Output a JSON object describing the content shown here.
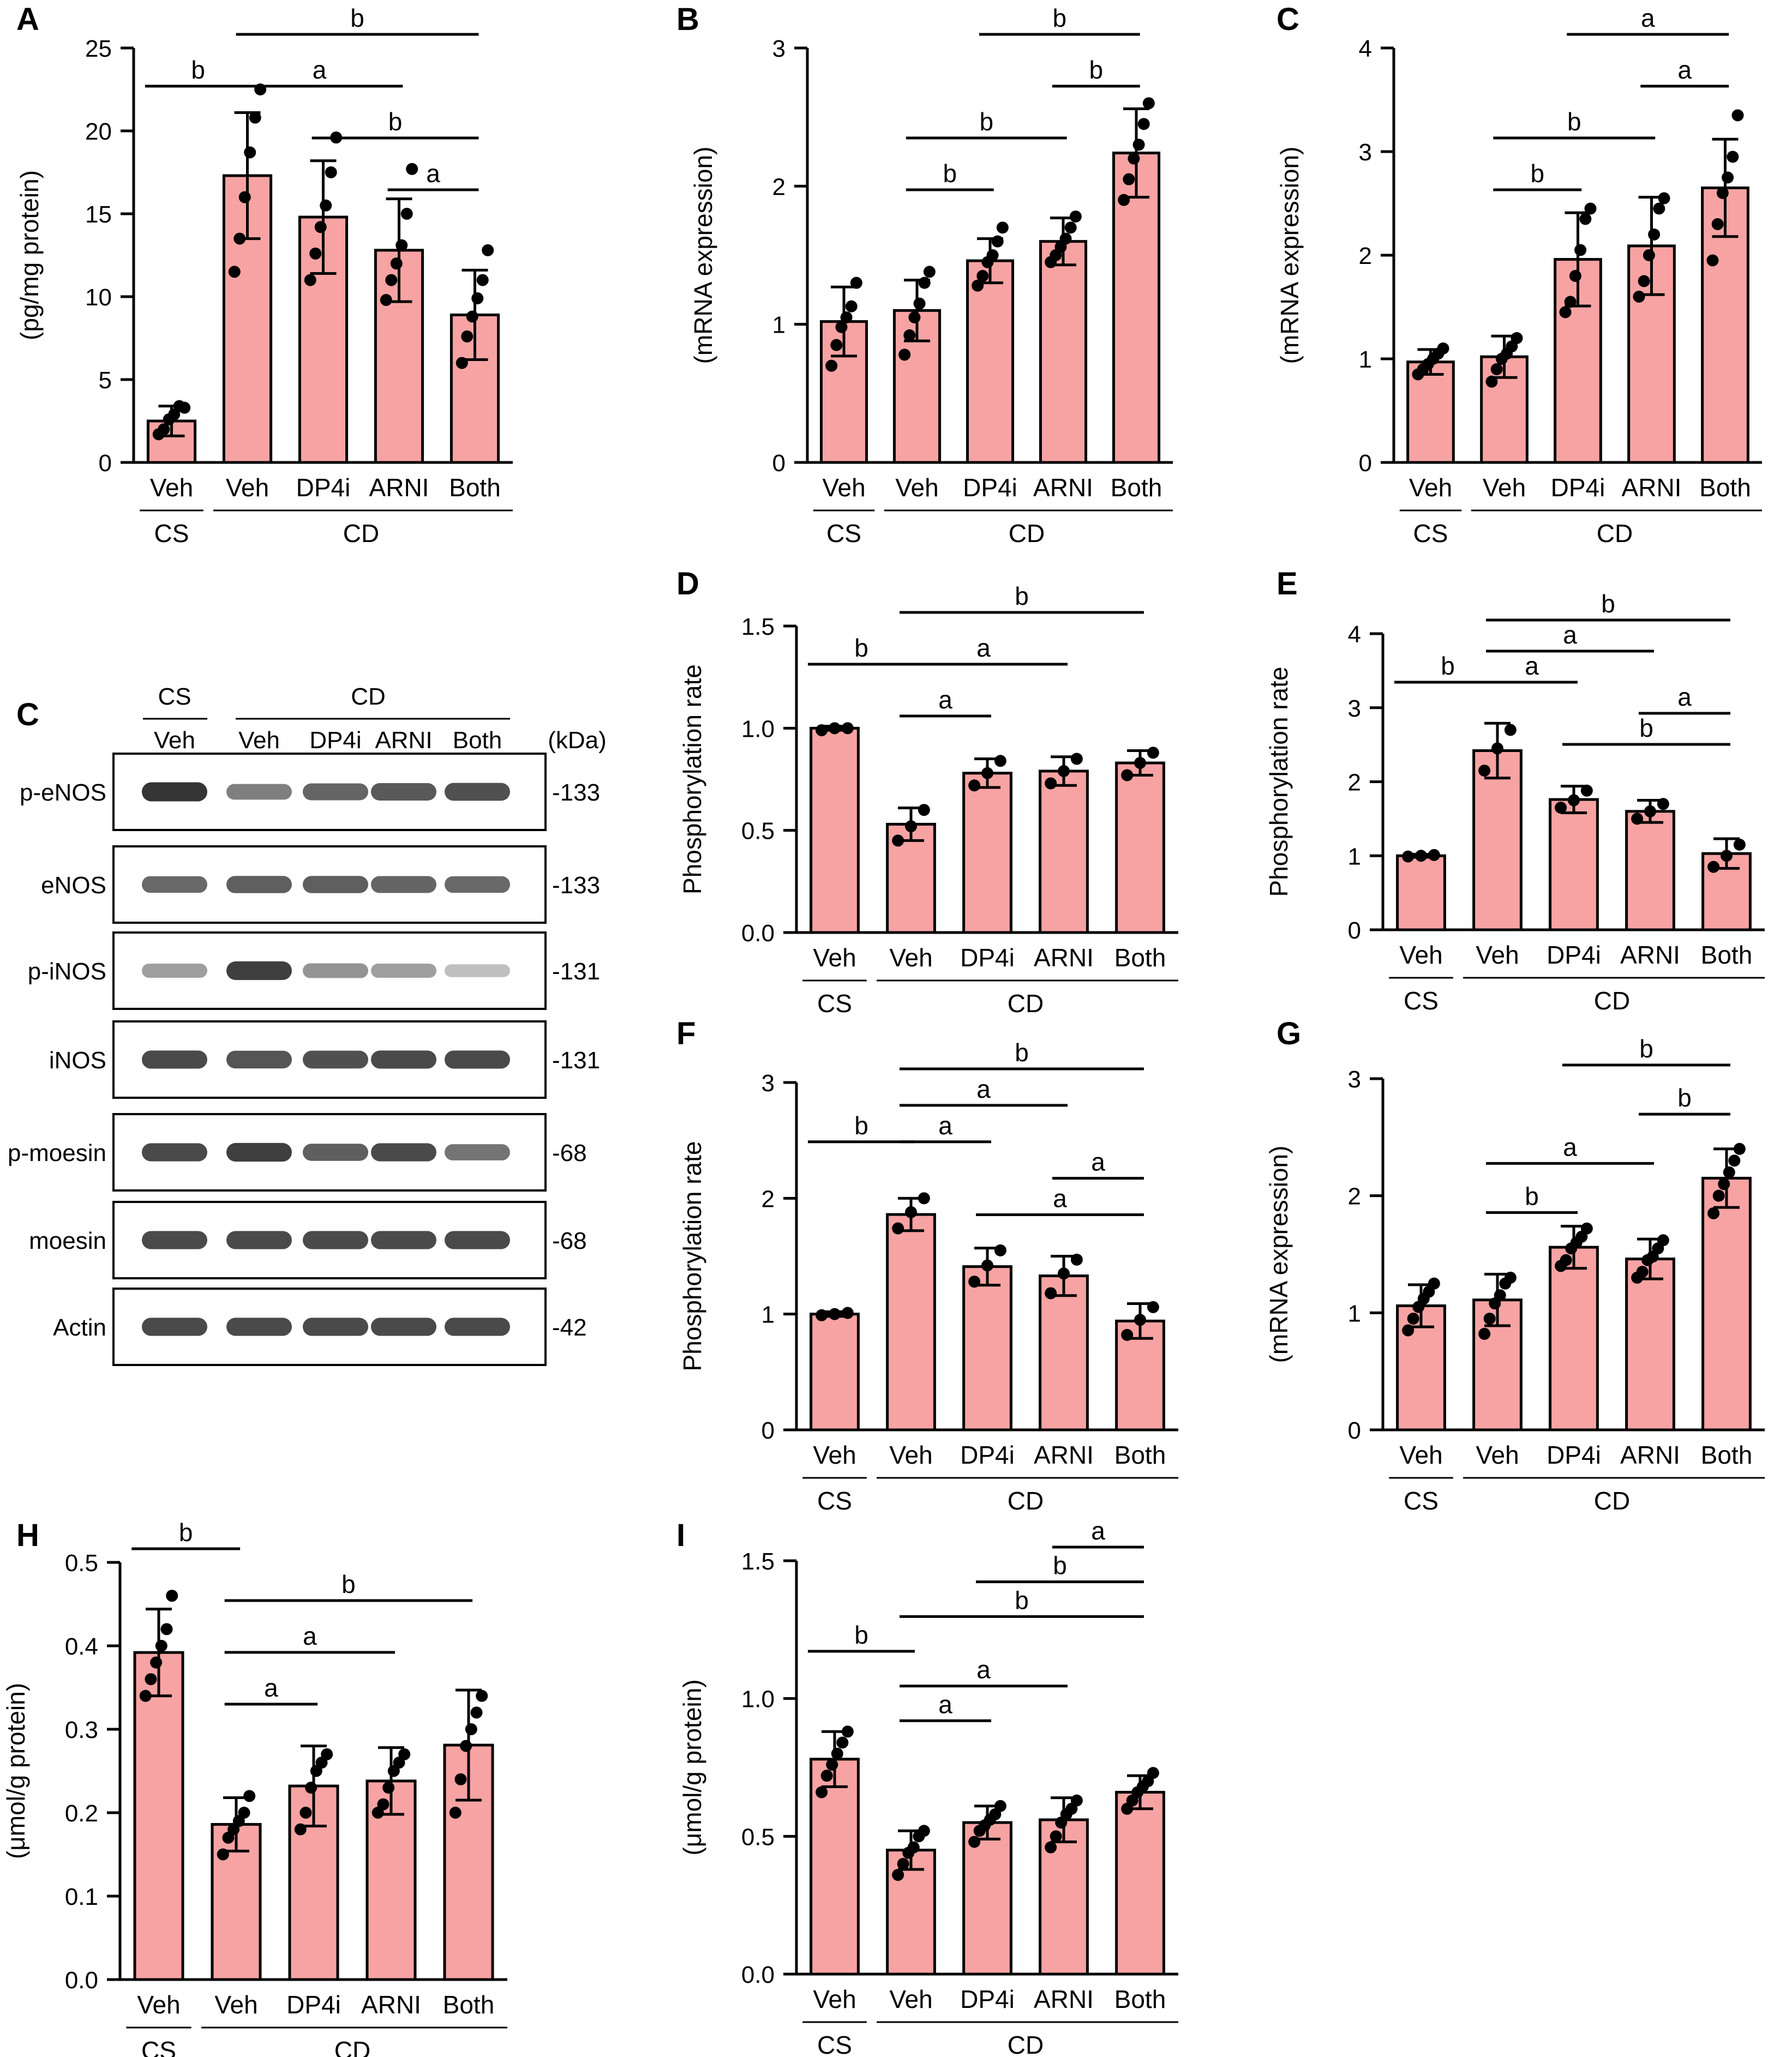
{
  "colors": {
    "bar_fill": "#f7a3a3",
    "bar_stroke": "#000000",
    "dot": "#000000",
    "blot_bg": "#ffffff",
    "blot_band": "#2a2a2a"
  },
  "groups": {
    "cs": "CS",
    "cd": "CD"
  },
  "categories": [
    "Veh",
    "Veh",
    "DP4i",
    "ARNI",
    "Both"
  ],
  "chart_data": [
    {
      "panel": "A",
      "type": "bar",
      "categories": [
        "Veh",
        "Veh",
        "DP4i",
        "ARNI",
        "Both"
      ],
      "ylabel": "(pg/mg protein)",
      "ylim": [
        0,
        25
      ],
      "yticks": [
        0,
        5,
        10,
        15,
        20,
        25
      ],
      "values": [
        2.5,
        17.3,
        14.8,
        12.8,
        8.9
      ],
      "errors": [
        0.9,
        3.8,
        3.4,
        3.1,
        2.7
      ],
      "points": [
        [
          1.7,
          2.0,
          2.6,
          2.9,
          3.4,
          3.3
        ],
        [
          11.5,
          13.5,
          16.0,
          18.7,
          20.8,
          22.5
        ],
        [
          11.0,
          12.6,
          14.2,
          15.5,
          17.5,
          19.6
        ],
        [
          9.8,
          11.0,
          12.0,
          13.1,
          15.0,
          17.7
        ],
        [
          6.0,
          7.6,
          8.8,
          9.9,
          11.0,
          12.8
        ]
      ],
      "significance": [
        {
          "from": 0,
          "to": 1,
          "label": "b",
          "level": 0
        },
        {
          "from": 1,
          "to": 3,
          "label": "a",
          "level": 0
        },
        {
          "from": 1,
          "to": 4,
          "label": "b",
          "level": 1
        },
        {
          "from": 2,
          "to": 4,
          "label": "b",
          "level": -1
        },
        {
          "from": 3,
          "to": 4,
          "label": "a",
          "level": -2
        }
      ]
    },
    {
      "panel": "B",
      "type": "bar",
      "categories": [
        "Veh",
        "Veh",
        "DP4i",
        "ARNI",
        "Both"
      ],
      "ylabel": "(mRNA expression)",
      "ylim": [
        0,
        3
      ],
      "yticks": [
        0,
        1,
        2,
        3
      ],
      "values": [
        1.02,
        1.1,
        1.46,
        1.6,
        2.24
      ],
      "errors": [
        0.25,
        0.22,
        0.16,
        0.17,
        0.32
      ],
      "points": [
        [
          0.7,
          0.85,
          0.98,
          1.05,
          1.13,
          1.3
        ],
        [
          0.78,
          0.92,
          1.05,
          1.15,
          1.3,
          1.38
        ],
        [
          1.28,
          1.35,
          1.45,
          1.5,
          1.6,
          1.7
        ],
        [
          1.45,
          1.5,
          1.56,
          1.62,
          1.7,
          1.78
        ],
        [
          1.9,
          2.05,
          2.2,
          2.3,
          2.45,
          2.6
        ]
      ],
      "significance": [
        {
          "from": 1,
          "to": 2,
          "label": "b",
          "level": 0
        },
        {
          "from": 1,
          "to": 3,
          "label": "b",
          "level": 1
        },
        {
          "from": 3,
          "to": 4,
          "label": "b",
          "level": 2
        },
        {
          "from": 2,
          "to": 4,
          "label": "b",
          "level": 3
        }
      ]
    },
    {
      "panel": "C",
      "type": "bar",
      "categories": [
        "Veh",
        "Veh",
        "DP4i",
        "ARNI",
        "Both"
      ],
      "ylabel": "(mRNA expression)",
      "ylim": [
        0,
        4
      ],
      "yticks": [
        0,
        1,
        2,
        3,
        4
      ],
      "values": [
        0.97,
        1.02,
        1.96,
        2.09,
        2.65
      ],
      "errors": [
        0.12,
        0.2,
        0.45,
        0.47,
        0.47
      ],
      "points": [
        [
          0.85,
          0.9,
          0.95,
          1.0,
          1.05,
          1.1
        ],
        [
          0.78,
          0.9,
          1.0,
          1.05,
          1.12,
          1.2
        ],
        [
          1.45,
          1.55,
          1.8,
          2.05,
          2.35,
          2.45
        ],
        [
          1.6,
          1.75,
          2.0,
          2.2,
          2.45,
          2.55
        ],
        [
          1.95,
          2.3,
          2.6,
          2.75,
          2.95,
          3.35
        ]
      ],
      "significance": [
        {
          "from": 1,
          "to": 2,
          "label": "b",
          "level": 0
        },
        {
          "from": 1,
          "to": 3,
          "label": "b",
          "level": 1
        },
        {
          "from": 3,
          "to": 4,
          "label": "a",
          "level": 2
        },
        {
          "from": 2,
          "to": 4,
          "label": "a",
          "level": 3
        }
      ]
    },
    {
      "panel": "D",
      "type": "bar",
      "categories": [
        "Veh",
        "Veh",
        "DP4i",
        "ARNI",
        "Both"
      ],
      "ylabel": "Phosphorylation rate",
      "ylim": [
        0,
        1.5
      ],
      "yticks": [
        "0.0",
        "0.5",
        "1.0",
        "1.5"
      ],
      "values": [
        1.0,
        0.53,
        0.78,
        0.79,
        0.83
      ],
      "errors": [
        0.01,
        0.08,
        0.07,
        0.07,
        0.06
      ],
      "points": [
        [
          0.99,
          1.0,
          1.0
        ],
        [
          0.45,
          0.52,
          0.6
        ],
        [
          0.72,
          0.78,
          0.84
        ],
        [
          0.73,
          0.79,
          0.85
        ],
        [
          0.77,
          0.83,
          0.88
        ]
      ],
      "significance": [
        {
          "from": 1,
          "to": 2,
          "label": "a",
          "level": 0
        },
        {
          "from": 0,
          "to": 1,
          "label": "b",
          "level": 1
        },
        {
          "from": 1,
          "to": 3,
          "label": "a",
          "level": 1
        },
        {
          "from": 1,
          "to": 4,
          "label": "b",
          "level": 2
        }
      ]
    },
    {
      "panel": "E",
      "type": "bar",
      "categories": [
        "Veh",
        "Veh",
        "DP4i",
        "ARNI",
        "Both"
      ],
      "ylabel": "Phosphorylation rate",
      "ylim": [
        0,
        4
      ],
      "yticks": [
        0,
        1,
        2,
        3,
        4
      ],
      "values": [
        1.0,
        2.42,
        1.76,
        1.6,
        1.03
      ],
      "errors": [
        0.02,
        0.37,
        0.18,
        0.15,
        0.2
      ],
      "points": [
        [
          0.99,
          1.0,
          1.01
        ],
        [
          2.15,
          2.45,
          2.7
        ],
        [
          1.65,
          1.75,
          1.88
        ],
        [
          1.5,
          1.6,
          1.7
        ],
        [
          0.85,
          1.0,
          1.15
        ]
      ],
      "significance": [
        {
          "from": 2,
          "to": 4,
          "label": "b",
          "level": 0
        },
        {
          "from": 3,
          "to": 4,
          "label": "a",
          "level": 1
        },
        {
          "from": 0,
          "to": 1,
          "label": "b",
          "level": 2
        },
        {
          "from": 1,
          "to": 2,
          "label": "a",
          "level": 2
        },
        {
          "from": 1,
          "to": 3,
          "label": "a",
          "level": 3
        },
        {
          "from": 1,
          "to": 4,
          "label": "b",
          "level": 4
        }
      ]
    },
    {
      "panel": "F",
      "type": "bar",
      "categories": [
        "Veh",
        "Veh",
        "DP4i",
        "ARNI",
        "Both"
      ],
      "ylabel": "Phosphorylation rate",
      "ylim": [
        0,
        3
      ],
      "yticks": [
        0,
        1,
        2,
        3
      ],
      "values": [
        1.0,
        1.86,
        1.41,
        1.33,
        0.94
      ],
      "errors": [
        0.02,
        0.14,
        0.16,
        0.17,
        0.15
      ],
      "points": [
        [
          0.99,
          1.0,
          1.01
        ],
        [
          1.74,
          1.88,
          2.0
        ],
        [
          1.28,
          1.42,
          1.55
        ],
        [
          1.18,
          1.35,
          1.47
        ],
        [
          0.82,
          0.95,
          1.06
        ]
      ],
      "significance": [
        {
          "from": 2,
          "to": 4,
          "label": "a",
          "level": 0
        },
        {
          "from": 3,
          "to": 4,
          "label": "a",
          "level": 1
        },
        {
          "from": 0,
          "to": 1,
          "label": "b",
          "level": 2
        },
        {
          "from": 1,
          "to": 2,
          "label": "a",
          "level": 2
        },
        {
          "from": 1,
          "to": 3,
          "label": "a",
          "level": 3
        },
        {
          "from": 1,
          "to": 4,
          "label": "b",
          "level": 4
        }
      ]
    },
    {
      "panel": "G",
      "type": "bar",
      "categories": [
        "Veh",
        "Veh",
        "DP4i",
        "ARNI",
        "Both"
      ],
      "ylabel": "(mRNA expression)",
      "ylim": [
        0,
        3
      ],
      "yticks": [
        0,
        1,
        2,
        3
      ],
      "values": [
        1.06,
        1.11,
        1.56,
        1.46,
        2.15
      ],
      "errors": [
        0.18,
        0.22,
        0.18,
        0.17,
        0.25
      ],
      "points": [
        [
          0.85,
          0.95,
          1.05,
          1.12,
          1.18,
          1.25
        ],
        [
          0.82,
          0.95,
          1.08,
          1.15,
          1.25,
          1.3
        ],
        [
          1.4,
          1.45,
          1.55,
          1.6,
          1.65,
          1.72
        ],
        [
          1.3,
          1.35,
          1.45,
          1.48,
          1.55,
          1.62
        ],
        [
          1.85,
          2.0,
          2.1,
          2.2,
          2.3,
          2.4
        ]
      ],
      "significance": [
        {
          "from": 1,
          "to": 2,
          "label": "b",
          "level": 0
        },
        {
          "from": 1,
          "to": 3,
          "label": "a",
          "level": 1
        },
        {
          "from": 3,
          "to": 4,
          "label": "b",
          "level": 2
        },
        {
          "from": 2,
          "to": 4,
          "label": "b",
          "level": 3
        }
      ]
    },
    {
      "panel": "H",
      "type": "bar",
      "categories": [
        "Veh",
        "Veh",
        "DP4i",
        "ARNI",
        "Both"
      ],
      "ylabel": "(μmol/g protein)",
      "ylim": [
        0,
        0.5
      ],
      "yticks": [
        "0.0",
        "0.1",
        "0.2",
        "0.3",
        "0.4",
        "0.5"
      ],
      "values": [
        0.392,
        0.186,
        0.232,
        0.238,
        0.281
      ],
      "errors": [
        0.052,
        0.032,
        0.048,
        0.04,
        0.066
      ],
      "points": [
        [
          0.34,
          0.36,
          0.38,
          0.4,
          0.42,
          0.46
        ],
        [
          0.15,
          0.17,
          0.18,
          0.19,
          0.2,
          0.22
        ],
        [
          0.18,
          0.2,
          0.23,
          0.25,
          0.26,
          0.27
        ],
        [
          0.2,
          0.21,
          0.23,
          0.25,
          0.26,
          0.27
        ],
        [
          0.2,
          0.24,
          0.28,
          0.3,
          0.32,
          0.34
        ]
      ],
      "significance": [
        {
          "from": 1,
          "to": 2,
          "label": "a",
          "level": 0
        },
        {
          "from": 1,
          "to": 3,
          "label": "a",
          "level": 1
        },
        {
          "from": 1,
          "to": 4,
          "label": "b",
          "level": 2
        },
        {
          "from": 0,
          "to": 1,
          "label": "b",
          "level": 3
        }
      ]
    },
    {
      "panel": "I",
      "type": "bar",
      "categories": [
        "Veh",
        "Veh",
        "DP4i",
        "ARNI",
        "Both"
      ],
      "ylabel": "(μmol/g protein)",
      "ylim": [
        0,
        1.5
      ],
      "yticks": [
        "0.0",
        "0.5",
        "1.0",
        "1.5"
      ],
      "values": [
        0.78,
        0.45,
        0.55,
        0.56,
        0.66
      ],
      "errors": [
        0.1,
        0.07,
        0.06,
        0.08,
        0.06
      ],
      "points": [
        [
          0.66,
          0.72,
          0.76,
          0.8,
          0.84,
          0.88
        ],
        [
          0.36,
          0.4,
          0.44,
          0.46,
          0.5,
          0.52
        ],
        [
          0.48,
          0.52,
          0.54,
          0.56,
          0.58,
          0.61
        ],
        [
          0.46,
          0.5,
          0.55,
          0.58,
          0.6,
          0.63
        ],
        [
          0.6,
          0.63,
          0.66,
          0.68,
          0.7,
          0.73
        ]
      ],
      "significance": [
        {
          "from": 1,
          "to": 2,
          "label": "a",
          "level": 0
        },
        {
          "from": 1,
          "to": 3,
          "label": "a",
          "level": 1
        },
        {
          "from": 0,
          "to": 1,
          "label": "b",
          "level": 2
        },
        {
          "from": 1,
          "to": 4,
          "label": "b",
          "level": 3
        },
        {
          "from": 2,
          "to": 4,
          "label": "b",
          "level": 4
        },
        {
          "from": 3,
          "to": 4,
          "label": "a",
          "level": 5
        }
      ]
    }
  ],
  "blot": {
    "panel": "C",
    "header_cs": "CS",
    "header_cd": "CD",
    "lanes": [
      "Veh",
      "Veh",
      "DP4i",
      "ARNI",
      "Both"
    ],
    "unit": "(kDa)",
    "rows": [
      {
        "label": "p-eNOS",
        "kda": "-133",
        "intensity": [
          0.95,
          0.6,
          0.72,
          0.78,
          0.82
        ]
      },
      {
        "label": "eNOS",
        "kda": "-133",
        "intensity": [
          0.7,
          0.75,
          0.75,
          0.72,
          0.7
        ]
      },
      {
        "label": "p-iNOS",
        "kda": "-131",
        "intensity": [
          0.45,
          0.9,
          0.5,
          0.45,
          0.3
        ]
      },
      {
        "label": "iNOS",
        "kda": "-131",
        "intensity": [
          0.85,
          0.8,
          0.82,
          0.85,
          0.85
        ]
      },
      {
        "label": "p-moesin",
        "kda": "-68",
        "intensity": [
          0.85,
          0.9,
          0.75,
          0.85,
          0.65
        ]
      },
      {
        "label": "moesin",
        "kda": "-68",
        "intensity": [
          0.85,
          0.85,
          0.85,
          0.85,
          0.85
        ]
      },
      {
        "label": "Actin",
        "kda": "-42",
        "intensity": [
          0.85,
          0.85,
          0.85,
          0.85,
          0.85
        ]
      }
    ]
  }
}
